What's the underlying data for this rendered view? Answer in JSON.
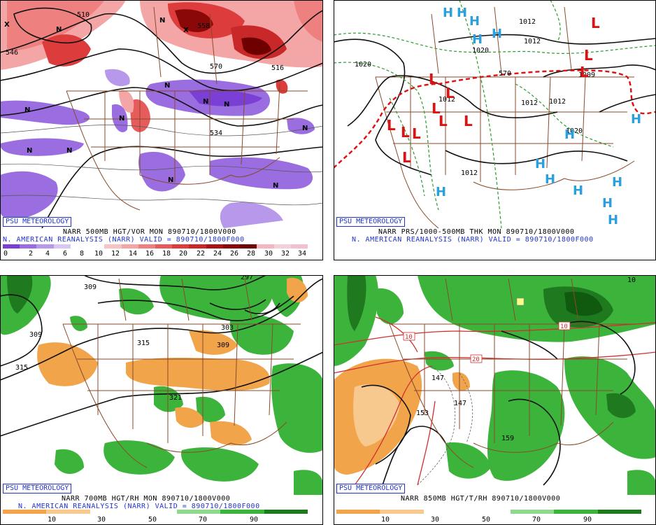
{
  "panels": [
    {
      "id": "vor500",
      "psu_label": "PSU METEOROLOGY",
      "title_line1": "NARR 500MB HGT/VOR MON 890710/1800V000",
      "title_line2": "N. AMERICAN REANALYSIS (NARR) VALID = 890710/1800F000",
      "colorbar_labels": [
        "0",
        "2",
        "4",
        "6",
        "8",
        "10",
        "12",
        "14",
        "16",
        "18",
        "20",
        "22",
        "24",
        "26",
        "28",
        "30",
        "32",
        "34"
      ],
      "colorbar_colors": [
        "#7a3fd4",
        "#9a6de0",
        "#b898ea",
        "#d9c7f3",
        "#ffffff",
        "#ffffff",
        "#f7c4c4",
        "#f4a6a6",
        "#ee8080",
        "#e65c5c",
        "#dc3c3c",
        "#c82828",
        "#a81414",
        "#8a0808",
        "#6e0000",
        "#f4b7c2",
        "#f6d0d8",
        "#f2c0cf"
      ],
      "map_labels": [
        "510",
        "558",
        "570",
        "534",
        "546",
        "516"
      ],
      "symbols": [
        "X",
        "X",
        "N",
        "N",
        "N",
        "N",
        "N",
        "N",
        "N",
        "N",
        "N",
        "N"
      ]
    },
    {
      "id": "prs_thk",
      "psu_label": "PSU METEOROLOGY",
      "title_line1": "NARR PRS/1000-500MB THK MON 890710/1800V000",
      "title_line2": "N. AMERICAN REANALYSIS (NARR) VALID = 890710/1800F000",
      "map_labels": [
        "1012",
        "1012",
        "1020",
        "1020",
        "1012",
        "1012",
        "1012",
        "1020",
        "1012",
        "570",
        "1009"
      ],
      "symbols": [
        "H",
        "H",
        "H",
        "H",
        "H",
        "H",
        "H",
        "H",
        "H",
        "H",
        "H",
        "H",
        "L",
        "L",
        "L",
        "L",
        "L",
        "L",
        "L",
        "L",
        "L",
        "L",
        "L",
        "L"
      ]
    },
    {
      "id": "rh700",
      "psu_label": "PSU METEOROLOGY",
      "title_line1": "NARR 700MB HGT/RH MON 890710/1800V000",
      "title_line2": "N. AMERICAN REANALYSIS (NARR) VALID = 890710/1800F000",
      "colorbar_labels": [
        "10",
        "30",
        "50",
        "70",
        "90"
      ],
      "colorbar_colors": [
        "#f2a44a",
        "#f7c98f",
        "#ffffff",
        "#ffffff",
        "#8fd98f",
        "#3cb43c",
        "#1f7a1f"
      ],
      "map_labels": [
        "309",
        "315",
        "315",
        "303",
        "309",
        "321",
        "309",
        "297"
      ]
    },
    {
      "id": "rh850",
      "psu_label": "PSU METEOROLOGY",
      "title_line1": "NARR 850MB HGT/T/RH 890710/1800V000",
      "colorbar_labels": [
        "10",
        "30",
        "50",
        "70",
        "90"
      ],
      "colorbar_colors": [
        "#f2a44a",
        "#f7c98f",
        "#ffffff",
        "#ffffff",
        "#8fd98f",
        "#3cb43c",
        "#1f7a1f"
      ],
      "map_labels": [
        "10",
        "10",
        "20",
        "147",
        "147",
        "153",
        "159",
        "10"
      ]
    }
  ]
}
